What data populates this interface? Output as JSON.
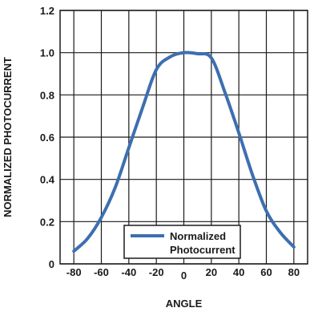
{
  "chart_data": {
    "type": "line",
    "xlabel": "ANGLE",
    "ylabel": "NORMALIZED PHOTOCURRENT",
    "xlim": [
      -90,
      90
    ],
    "ylim": [
      0,
      1.2
    ],
    "x_ticks": [
      -80,
      -60,
      -40,
      -20,
      0,
      20,
      40,
      60,
      80
    ],
    "y_ticks": [
      0,
      0.2,
      0.4,
      0.6,
      0.8,
      1.0,
      1.2
    ],
    "y_tick_labels": [
      "0",
      "0.2",
      "0.4",
      "0.6",
      "0.8",
      "1.0",
      "1.2"
    ],
    "grid": true,
    "legend_position": "bottom-center",
    "series": [
      {
        "name": "Normalized Photocurrent",
        "color": "#3d6fb0",
        "x": [
          -80,
          -70,
          -60,
          -50,
          -40,
          -30,
          -20,
          -10,
          0,
          10,
          20,
          30,
          40,
          50,
          60,
          70,
          80
        ],
        "y": [
          0.06,
          0.12,
          0.22,
          0.36,
          0.55,
          0.74,
          0.92,
          0.98,
          1.0,
          0.995,
          0.975,
          0.81,
          0.62,
          0.42,
          0.25,
          0.15,
          0.08
        ]
      }
    ],
    "legend_label_lines": [
      "Normalized",
      "Photocurrent"
    ]
  }
}
